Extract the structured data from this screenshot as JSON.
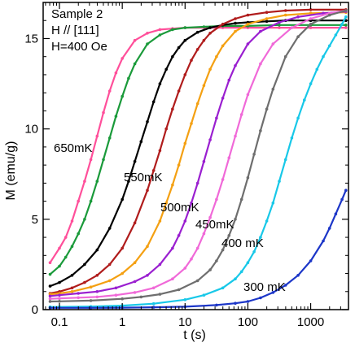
{
  "chart_data": {
    "type": "line",
    "annotations": [
      "Sample 2",
      "H // [111]",
      "H=400 Oe"
    ],
    "xlabel": "t (s)",
    "ylabel": "M (emu/g)",
    "xscale": "log",
    "xlim": [
      0.055,
      4000
    ],
    "ylim": [
      0,
      17
    ],
    "xticks": [
      0.1,
      1,
      10,
      100,
      1000
    ],
    "xtick_labels": [
      "0.1",
      "1",
      "10",
      "100",
      "1000"
    ],
    "yticks": [
      0,
      5,
      10,
      15
    ],
    "ytick_labels": [
      "0",
      "5",
      "10",
      "15"
    ],
    "grid": false,
    "legend": "none",
    "series": [
      {
        "name": "650mK",
        "color": "#ff4f9a",
        "logt": [
          -1.15,
          -1.0,
          -0.9,
          -0.8,
          -0.7,
          -0.6,
          -0.5,
          -0.4,
          -0.3,
          -0.2,
          -0.1,
          0.0,
          0.2,
          0.4,
          0.6,
          0.8,
          1.0,
          1.3,
          1.6,
          2.0,
          2.5,
          3.0,
          3.56
        ],
        "y": [
          2.6,
          3.4,
          4.0,
          4.9,
          6.0,
          7.1,
          8.3,
          9.6,
          10.9,
          12.1,
          13.1,
          13.9,
          14.9,
          15.3,
          15.5,
          15.55,
          15.6,
          15.6,
          15.6,
          15.6,
          15.6,
          15.6,
          15.6
        ]
      },
      {
        "name": "",
        "color": "#1a9a3a",
        "logt": [
          -1.15,
          -1.0,
          -0.9,
          -0.8,
          -0.7,
          -0.6,
          -0.5,
          -0.4,
          -0.3,
          -0.2,
          -0.1,
          0.0,
          0.1,
          0.2,
          0.4,
          0.6,
          0.8,
          1.0,
          1.3,
          1.6,
          2.0,
          2.5,
          3.0,
          3.56
        ],
        "y": [
          1.95,
          2.4,
          2.9,
          3.5,
          4.2,
          5.0,
          6.0,
          7.1,
          8.3,
          9.5,
          10.7,
          11.8,
          12.8,
          13.6,
          14.7,
          15.2,
          15.5,
          15.6,
          15.65,
          15.7,
          15.7,
          15.75,
          15.75,
          15.75
        ]
      },
      {
        "name": "550mK",
        "color": "#000000",
        "logt": [
          -1.15,
          -1.0,
          -0.8,
          -0.6,
          -0.4,
          -0.2,
          0.0,
          0.1,
          0.2,
          0.3,
          0.4,
          0.5,
          0.6,
          0.7,
          0.8,
          0.9,
          1.0,
          1.2,
          1.4,
          1.6,
          1.8,
          2.0,
          2.3,
          2.6,
          3.0,
          3.56
        ],
        "y": [
          1.3,
          1.5,
          1.9,
          2.5,
          3.3,
          4.5,
          6.1,
          7.1,
          8.2,
          9.3,
          10.4,
          11.5,
          12.5,
          13.3,
          14.0,
          14.5,
          14.9,
          15.35,
          15.6,
          15.75,
          15.85,
          15.9,
          15.95,
          16.0,
          16.0,
          16.0
        ]
      },
      {
        "name": "",
        "color": "#b01c1c",
        "logt": [
          -1.15,
          -1.0,
          -0.8,
          -0.6,
          -0.4,
          -0.2,
          0.0,
          0.2,
          0.4,
          0.5,
          0.6,
          0.7,
          0.8,
          0.9,
          1.0,
          1.1,
          1.2,
          1.3,
          1.4,
          1.6,
          1.8,
          2.0,
          2.3,
          2.6,
          3.0,
          3.56
        ],
        "y": [
          0.9,
          1.0,
          1.2,
          1.5,
          1.9,
          2.5,
          3.4,
          4.8,
          6.6,
          7.7,
          8.8,
          10.0,
          11.1,
          12.1,
          13.0,
          13.8,
          14.4,
          14.9,
          15.3,
          15.8,
          16.1,
          16.3,
          16.45,
          16.55,
          16.6,
          16.6
        ]
      },
      {
        "name": "500mK",
        "color": "#f4a012",
        "logt": [
          -1.15,
          -1.0,
          -0.8,
          -0.5,
          -0.2,
          0.0,
          0.2,
          0.4,
          0.6,
          0.7,
          0.8,
          0.9,
          1.0,
          1.1,
          1.2,
          1.3,
          1.4,
          1.5,
          1.6,
          1.8,
          2.0,
          2.3,
          2.6,
          3.0,
          3.56
        ],
        "y": [
          0.85,
          0.9,
          1.0,
          1.25,
          1.6,
          2.0,
          2.6,
          3.5,
          4.9,
          5.9,
          6.9,
          8.0,
          9.2,
          10.3,
          11.4,
          12.4,
          13.3,
          14.0,
          14.6,
          15.4,
          15.8,
          16.1,
          16.3,
          16.4,
          16.45
        ]
      },
      {
        "name": "",
        "color": "#9a1fd0",
        "logt": [
          -1.15,
          -1.0,
          -0.7,
          -0.4,
          -0.1,
          0.2,
          0.4,
          0.6,
          0.8,
          0.9,
          1.0,
          1.1,
          1.2,
          1.3,
          1.4,
          1.5,
          1.6,
          1.7,
          1.8,
          2.0,
          2.2,
          2.5,
          2.8,
          3.2,
          3.56
        ],
        "y": [
          0.75,
          0.8,
          0.9,
          1.0,
          1.2,
          1.55,
          1.9,
          2.5,
          3.4,
          4.1,
          4.9,
          5.9,
          7.0,
          8.2,
          9.4,
          10.6,
          11.7,
          12.7,
          13.5,
          14.7,
          15.4,
          15.9,
          16.2,
          16.4,
          16.5
        ]
      },
      {
        "name": "450mK",
        "color": "#f069d8",
        "logt": [
          -1.15,
          -1.0,
          -0.7,
          -0.4,
          -0.1,
          0.2,
          0.5,
          0.8,
          1.0,
          1.1,
          1.2,
          1.3,
          1.4,
          1.5,
          1.6,
          1.7,
          1.8,
          1.9,
          2.0,
          2.2,
          2.4,
          2.7,
          3.0,
          3.3,
          3.56
        ],
        "y": [
          0.6,
          0.62,
          0.66,
          0.7,
          0.8,
          0.95,
          1.2,
          1.7,
          2.3,
          2.8,
          3.4,
          4.2,
          5.1,
          6.1,
          7.2,
          8.4,
          9.6,
          10.8,
          11.9,
          13.6,
          14.7,
          15.6,
          16.1,
          16.4,
          16.55
        ]
      },
      {
        "name": "",
        "color": "#6e6e6e",
        "logt": [
          -1.15,
          -1.0,
          -0.5,
          0.0,
          0.3,
          0.6,
          0.9,
          1.2,
          1.4,
          1.5,
          1.6,
          1.7,
          1.8,
          1.9,
          2.0,
          2.1,
          2.2,
          2.3,
          2.4,
          2.6,
          2.8,
          3.0,
          3.3,
          3.56
        ],
        "y": [
          0.45,
          0.46,
          0.5,
          0.6,
          0.7,
          0.85,
          1.1,
          1.6,
          2.2,
          2.7,
          3.3,
          4.1,
          5.0,
          6.1,
          7.3,
          8.6,
          9.9,
          11.1,
          12.2,
          14.0,
          15.1,
          15.8,
          16.3,
          16.55
        ]
      },
      {
        "name": "400 mK",
        "color": "#18c8e8",
        "logt": [
          -1.15,
          -1.0,
          -0.5,
          0.0,
          0.5,
          1.0,
          1.3,
          1.6,
          1.8,
          1.9,
          2.0,
          2.1,
          2.2,
          2.3,
          2.4,
          2.5,
          2.6,
          2.7,
          2.8,
          2.9,
          3.0,
          3.1,
          3.2,
          3.3,
          3.4,
          3.5,
          3.56
        ],
        "y": [
          0.15,
          0.15,
          0.17,
          0.22,
          0.33,
          0.55,
          0.8,
          1.2,
          1.7,
          2.1,
          2.6,
          3.2,
          4.0,
          4.9,
          5.9,
          7.1,
          8.3,
          9.5,
          10.6,
          11.6,
          12.5,
          13.3,
          14.0,
          14.6,
          15.2,
          15.8,
          16.2
        ]
      },
      {
        "name": "300 mK",
        "color": "#1c36c8",
        "logt": [
          -1.15,
          -0.5,
          0.0,
          0.5,
          1.0,
          1.5,
          1.8,
          2.0,
          2.2,
          2.4,
          2.6,
          2.8,
          3.0,
          3.2,
          3.3,
          3.4,
          3.5,
          3.56
        ],
        "y": [
          0.1,
          0.1,
          0.11,
          0.13,
          0.16,
          0.25,
          0.35,
          0.45,
          0.65,
          0.95,
          1.35,
          1.9,
          2.7,
          3.8,
          4.5,
          5.3,
          6.1,
          6.6
        ]
      }
    ]
  }
}
